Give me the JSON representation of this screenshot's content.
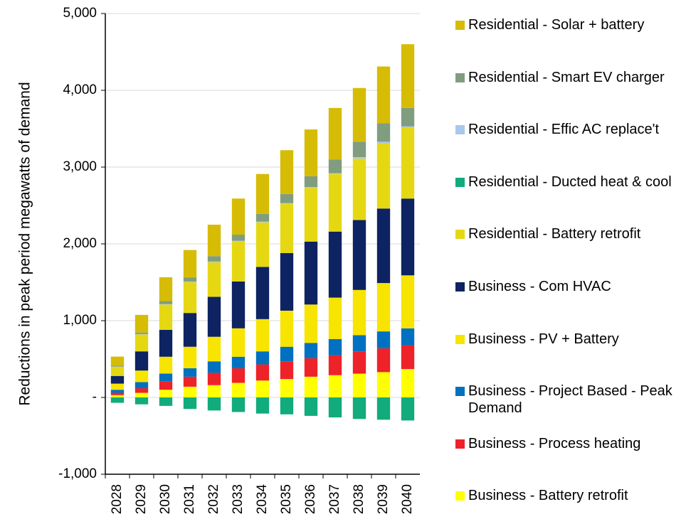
{
  "chart_data": {
    "type": "stacked_bar",
    "y_label": "Reductions in peak period megawatts of demand",
    "categories": [
      "2028",
      "2029",
      "2030",
      "2031",
      "2032",
      "2033",
      "2034",
      "2035",
      "2036",
      "2037",
      "2038",
      "2039",
      "2040"
    ],
    "series": [
      {
        "name": "Business - Battery retrofit",
        "color": "#ffff00",
        "values": [
          30,
          60,
          100,
          140,
          160,
          190,
          220,
          240,
          270,
          290,
          310,
          330,
          370
        ]
      },
      {
        "name": "Business - Process heating",
        "color": "#ee2229",
        "values": [
          30,
          60,
          110,
          130,
          160,
          190,
          210,
          230,
          240,
          260,
          290,
          310,
          310
        ]
      },
      {
        "name": "Business - Project Based - Peak Demand",
        "color": "#0070c0",
        "values": [
          40,
          80,
          100,
          110,
          150,
          150,
          170,
          190,
          200,
          210,
          210,
          220,
          220
        ]
      },
      {
        "name": "Business - PV + Battery",
        "color": "#f7e400",
        "values": [
          80,
          150,
          220,
          280,
          320,
          370,
          420,
          470,
          500,
          540,
          590,
          630,
          690
        ]
      },
      {
        "name": "Business - Com HVAC",
        "color": "#0d2362",
        "values": [
          100,
          250,
          350,
          440,
          520,
          610,
          680,
          750,
          820,
          860,
          910,
          970,
          1000
        ]
      },
      {
        "name": "Residential - Battery retrofit",
        "color": "#e5d813",
        "values": [
          120,
          220,
          330,
          400,
          450,
          520,
          580,
          640,
          700,
          750,
          800,
          850,
          920
        ]
      },
      {
        "name": "Residential - Ducted heat & cool",
        "color": "#12ab7b",
        "values": [
          -70,
          -90,
          -110,
          -150,
          -170,
          -190,
          -210,
          -220,
          -240,
          -260,
          -280,
          -290,
          -300
        ]
      },
      {
        "name": "Residential - Effic AC replace't",
        "color": "#a9c8ec",
        "values": [
          2,
          5,
          5,
          10,
          10,
          10,
          10,
          10,
          10,
          10,
          20,
          20,
          20
        ]
      },
      {
        "name": "Residential - Smart EV charger",
        "color": "#809d80",
        "values": [
          10,
          20,
          40,
          50,
          70,
          80,
          100,
          120,
          140,
          180,
          200,
          240,
          240
        ]
      },
      {
        "name": "Residential - Solar + battery",
        "color": "#d7bc05",
        "values": [
          120,
          230,
          310,
          360,
          410,
          470,
          520,
          570,
          610,
          670,
          700,
          740,
          830
        ]
      }
    ],
    "ylim": [
      -1000,
      5000
    ],
    "yticks": [
      {
        "value": -1000,
        "label": "-1,000"
      },
      {
        "value": 0,
        "label": "-"
      },
      {
        "value": 1000,
        "label": "1,000"
      },
      {
        "value": 2000,
        "label": "2,000"
      },
      {
        "value": 3000,
        "label": "3,000"
      },
      {
        "value": 4000,
        "label": "4,000"
      },
      {
        "value": 5000,
        "label": "5,000"
      }
    ],
    "grid": true
  }
}
